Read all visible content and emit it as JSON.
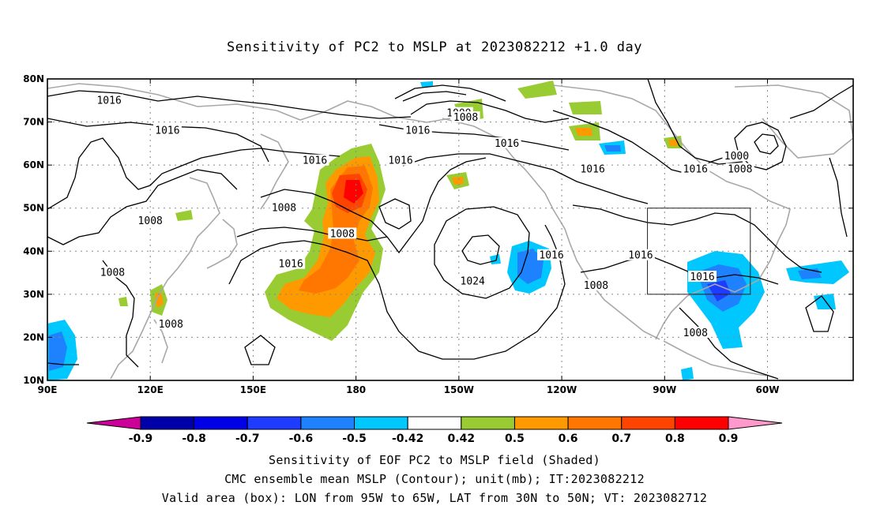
{
  "title": "Sensitivity of PC2 to MSLP at 2023082212 +1.0 day",
  "footer": {
    "line1": "Sensitivity of EOF PC2 to MSLP field (Shaded)",
    "line2": "CMC ensemble mean MSLP (Contour); unit(mb); IT:2023082212",
    "line3": "Valid area (box): LON from 95W to 65W, LAT from 30N to 50N; VT: 2023082712"
  },
  "map": {
    "lon_range": [
      90,
      325
    ],
    "lat_range": [
      10,
      80
    ],
    "x_ticks": [
      {
        "lon": 90,
        "label": "90E"
      },
      {
        "lon": 120,
        "label": "120E"
      },
      {
        "lon": 150,
        "label": "150E"
      },
      {
        "lon": 180,
        "label": "180"
      },
      {
        "lon": 210,
        "label": "150W"
      },
      {
        "lon": 240,
        "label": "120W"
      },
      {
        "lon": 270,
        "label": "90W"
      },
      {
        "lon": 300,
        "label": "60W"
      }
    ],
    "y_ticks": [
      {
        "lat": 10,
        "label": "10N"
      },
      {
        "lat": 20,
        "label": "20N"
      },
      {
        "lat": 30,
        "label": "30N"
      },
      {
        "lat": 40,
        "label": "40N"
      },
      {
        "lat": 50,
        "label": "50N"
      },
      {
        "lat": 60,
        "label": "60N"
      },
      {
        "lat": 70,
        "label": "70N"
      },
      {
        "lat": 80,
        "label": "80N"
      }
    ],
    "valid_box": {
      "lon_min": 265,
      "lon_max": 295,
      "lat_min": 30,
      "lat_max": 50
    },
    "contour_labels": [
      {
        "text": "1016",
        "lon": 108,
        "lat": 75
      },
      {
        "text": "1016",
        "lon": 125,
        "lat": 68
      },
      {
        "text": "1016",
        "lon": 168,
        "lat": 61
      },
      {
        "text": "1016",
        "lon": 198,
        "lat": 68
      },
      {
        "text": "1016",
        "lon": 224,
        "lat": 65
      },
      {
        "text": "1016",
        "lon": 193,
        "lat": 61
      },
      {
        "text": "1016",
        "lon": 249,
        "lat": 59
      },
      {
        "text": "1016",
        "lon": 279,
        "lat": 59
      },
      {
        "text": "1016",
        "lon": 161,
        "lat": 37
      },
      {
        "text": "1016",
        "lon": 237,
        "lat": 39
      },
      {
        "text": "1016",
        "lon": 263,
        "lat": 39
      },
      {
        "text": "1016",
        "lon": 281,
        "lat": 34
      },
      {
        "text": "1000",
        "lon": 210,
        "lat": 72
      },
      {
        "text": "1008",
        "lon": 212,
        "lat": 71
      },
      {
        "text": "1000",
        "lon": 291,
        "lat": 62
      },
      {
        "text": "1008",
        "lon": 292,
        "lat": 59
      },
      {
        "text": "1008",
        "lon": 120,
        "lat": 47
      },
      {
        "text": "1008",
        "lon": 159,
        "lat": 50
      },
      {
        "text": "1008",
        "lon": 176,
        "lat": 44
      },
      {
        "text": "1008",
        "lon": 109,
        "lat": 35
      },
      {
        "text": "1008",
        "lon": 126,
        "lat": 23
      },
      {
        "text": "1008",
        "lon": 250,
        "lat": 32
      },
      {
        "text": "1008",
        "lon": 279,
        "lat": 21
      },
      {
        "text": "1024",
        "lon": 214,
        "lat": 33
      }
    ]
  },
  "colorbar": {
    "colors": [
      "#cc0099",
      "#0000aa",
      "#0000e6",
      "#1e3cff",
      "#1e82ff",
      "#00c8ff",
      "#ffffff",
      "#99cc33",
      "#ff9900",
      "#ff7700",
      "#ff4400",
      "#ff0000",
      "#ff99cc"
    ],
    "labels": [
      "-0.9",
      "-0.8",
      "-0.7",
      "-0.6",
      "-0.5",
      "-0.42",
      "0.42",
      "0.5",
      "0.6",
      "0.7",
      "0.8",
      "0.9"
    ]
  }
}
